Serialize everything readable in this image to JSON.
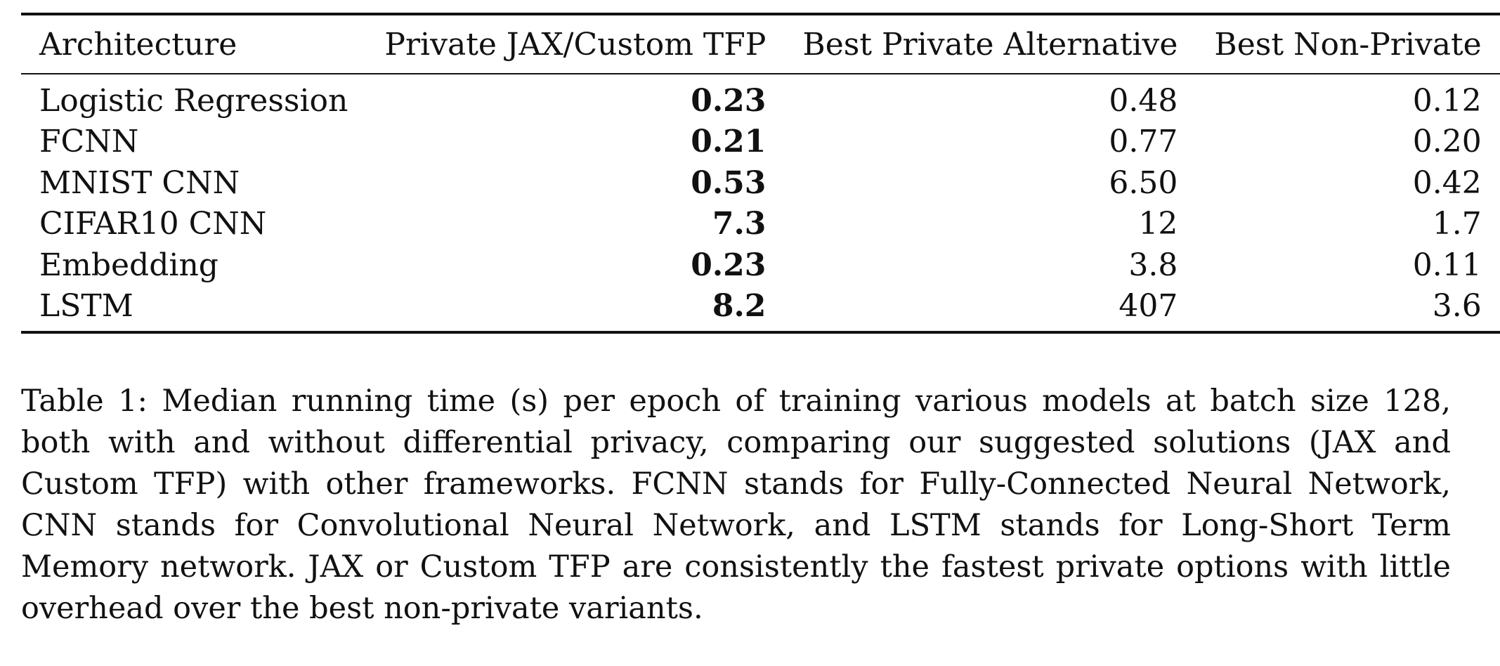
{
  "table": {
    "headers": [
      "Architecture",
      "Private JAX/Custom TFP",
      "Best Private Alternative",
      "Best Non-Private"
    ],
    "rows": [
      {
        "architecture": "Logistic Regression",
        "private_jax_tfp": "0.23",
        "best_private_alt": "0.48",
        "best_non_private": "0.12"
      },
      {
        "architecture": "FCNN",
        "private_jax_tfp": "0.21",
        "best_private_alt": "0.77",
        "best_non_private": "0.20"
      },
      {
        "architecture": "MNIST CNN",
        "private_jax_tfp": "0.53",
        "best_private_alt": "6.50",
        "best_non_private": "0.42"
      },
      {
        "architecture": "CIFAR10 CNN",
        "private_jax_tfp": "7.3",
        "best_private_alt": "12",
        "best_non_private": "1.7"
      },
      {
        "architecture": "Embedding",
        "private_jax_tfp": "0.23",
        "best_private_alt": "3.8",
        "best_non_private": "0.11"
      },
      {
        "architecture": "LSTM",
        "private_jax_tfp": "8.2",
        "best_private_alt": "407",
        "best_non_private": "3.6"
      }
    ]
  },
  "caption": "Table 1: Median running time (s) per epoch of training various models at batch size 128, both with and without differential privacy, comparing our suggested solutions (JAX and Custom TFP) with other frameworks. FCNN stands for Fully-Connected Neural Network, CNN stands for Convolutional Neural Network, and LSTM stands for Long-Short Term Memory network. JAX or Custom TFP are consistently the fastest private options with little overhead over the best non-private variants."
}
